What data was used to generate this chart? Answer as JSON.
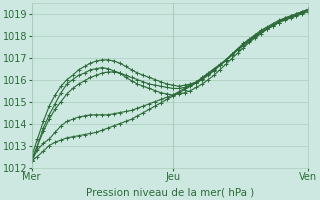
{
  "title": "",
  "xlabel": "Pression niveau de la mer( hPa )",
  "ylabel": "",
  "bg_color": "#cce8e0",
  "grid_color": "#aaccbb",
  "line_color": "#2d6b3a",
  "xlim": [
    0,
    47
  ],
  "ylim": [
    1012.0,
    1019.5
  ],
  "yticks": [
    1012,
    1013,
    1014,
    1015,
    1016,
    1017,
    1018,
    1019
  ],
  "xtick_labels": [
    "Mer",
    "Jeu",
    "Ven"
  ],
  "xtick_positions": [
    0,
    24,
    47
  ],
  "series": [
    [
      1012.3,
      1012.8,
      1013.1,
      1013.3,
      1013.6,
      1013.9,
      1014.1,
      1014.2,
      1014.3,
      1014.35,
      1014.4,
      1014.4,
      1014.4,
      1014.4,
      1014.45,
      1014.5,
      1014.55,
      1014.6,
      1014.7,
      1014.8,
      1014.9,
      1015.0,
      1015.1,
      1015.2,
      1015.3,
      1015.45,
      1015.6,
      1015.75,
      1015.9,
      1016.1,
      1016.3,
      1016.5,
      1016.7,
      1016.9,
      1017.1,
      1017.35,
      1017.6,
      1017.8,
      1018.0,
      1018.2,
      1018.35,
      1018.5,
      1018.65,
      1018.8,
      1018.9,
      1019.0,
      1019.1,
      1019.2
    ],
    [
      1012.3,
      1013.0,
      1013.8,
      1014.4,
      1014.9,
      1015.4,
      1015.8,
      1016.0,
      1016.2,
      1016.3,
      1016.45,
      1016.5,
      1016.55,
      1016.5,
      1016.4,
      1016.3,
      1016.1,
      1015.95,
      1015.8,
      1015.7,
      1015.6,
      1015.5,
      1015.4,
      1015.35,
      1015.3,
      1015.35,
      1015.4,
      1015.5,
      1015.65,
      1015.8,
      1016.0,
      1016.2,
      1016.45,
      1016.7,
      1016.95,
      1017.2,
      1017.45,
      1017.7,
      1017.9,
      1018.1,
      1018.3,
      1018.45,
      1018.6,
      1018.75,
      1018.85,
      1018.95,
      1019.05,
      1019.15
    ],
    [
      1012.35,
      1013.0,
      1013.65,
      1014.2,
      1014.65,
      1015.0,
      1015.35,
      1015.6,
      1015.8,
      1015.95,
      1016.1,
      1016.2,
      1016.3,
      1016.35,
      1016.35,
      1016.3,
      1016.2,
      1016.1,
      1016.0,
      1015.9,
      1015.8,
      1015.75,
      1015.7,
      1015.65,
      1015.6,
      1015.6,
      1015.65,
      1015.75,
      1015.85,
      1016.0,
      1016.2,
      1016.4,
      1016.65,
      1016.9,
      1017.15,
      1017.4,
      1017.65,
      1017.85,
      1018.05,
      1018.25,
      1018.4,
      1018.55,
      1018.7,
      1018.8,
      1018.9,
      1019.0,
      1019.1,
      1019.2
    ],
    [
      1012.5,
      1013.3,
      1014.1,
      1014.8,
      1015.3,
      1015.7,
      1016.0,
      1016.2,
      1016.45,
      1016.6,
      1016.75,
      1016.85,
      1016.9,
      1016.9,
      1016.85,
      1016.75,
      1016.6,
      1016.45,
      1016.3,
      1016.2,
      1016.1,
      1016.0,
      1015.9,
      1015.8,
      1015.75,
      1015.7,
      1015.75,
      1015.8,
      1015.9,
      1016.05,
      1016.25,
      1016.45,
      1016.65,
      1016.9,
      1017.15,
      1017.4,
      1017.6,
      1017.8,
      1018.0,
      1018.15,
      1018.3,
      1018.45,
      1018.6,
      1018.7,
      1018.8,
      1018.9,
      1019.0,
      1019.1
    ],
    [
      1012.3,
      1012.5,
      1012.75,
      1013.0,
      1013.15,
      1013.25,
      1013.35,
      1013.4,
      1013.45,
      1013.5,
      1013.55,
      1013.6,
      1013.7,
      1013.8,
      1013.9,
      1014.0,
      1014.1,
      1014.2,
      1014.35,
      1014.5,
      1014.65,
      1014.8,
      1014.95,
      1015.1,
      1015.25,
      1015.4,
      1015.55,
      1015.7,
      1015.85,
      1016.05,
      1016.25,
      1016.45,
      1016.65,
      1016.85,
      1017.1,
      1017.35,
      1017.55,
      1017.75,
      1017.95,
      1018.15,
      1018.3,
      1018.45,
      1018.6,
      1018.75,
      1018.85,
      1018.95,
      1019.05,
      1019.2
    ]
  ]
}
